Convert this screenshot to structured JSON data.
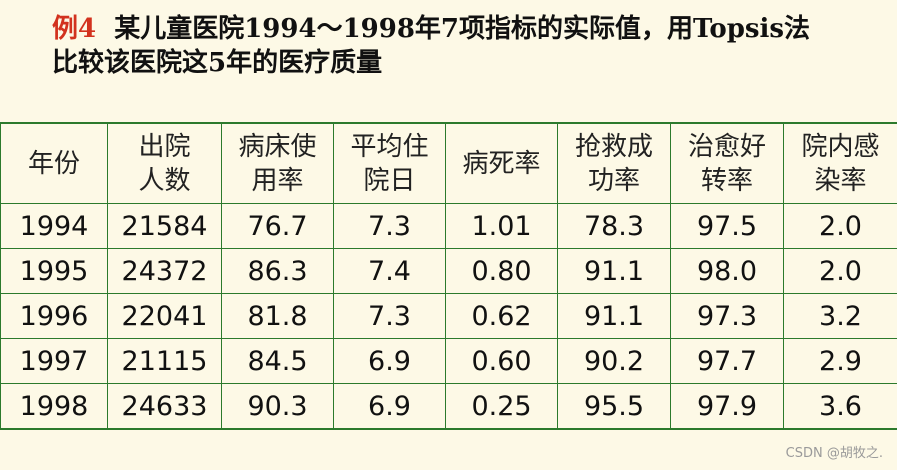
{
  "title": {
    "prefix": "例4",
    "line1": "某儿童医院1994～1998年7项指标的实际值，用Topsis法",
    "line2": "比较该医院这5年的医疗质量"
  },
  "colors": {
    "prefix": "#d2321e",
    "border": "#2c7a2c",
    "background": "#fdf9e6"
  },
  "table": {
    "headers": [
      [
        "年份"
      ],
      [
        "出院",
        "人数"
      ],
      [
        "病床使",
        "用率"
      ],
      [
        "平均住",
        "院日"
      ],
      [
        "病死率"
      ],
      [
        "抢救成",
        "功率"
      ],
      [
        "治愈好",
        "转率"
      ],
      [
        "院内感",
        "染率"
      ]
    ],
    "rows": [
      [
        "1994",
        "21584",
        "76.7",
        "7.3",
        "1.01",
        "78.3",
        "97.5",
        "2.0"
      ],
      [
        "1995",
        "24372",
        "86.3",
        "7.4",
        "0.80",
        "91.1",
        "98.0",
        "2.0"
      ],
      [
        "1996",
        "22041",
        "81.8",
        "7.3",
        "0.62",
        "91.1",
        "97.3",
        "3.2"
      ],
      [
        "1997",
        "21115",
        "84.5",
        "6.9",
        "0.60",
        "90.2",
        "97.7",
        "2.9"
      ],
      [
        "1998",
        "24633",
        "90.3",
        "6.9",
        "0.25",
        "95.5",
        "97.9",
        "3.6"
      ]
    ]
  },
  "watermark": "CSDN @胡牧之."
}
